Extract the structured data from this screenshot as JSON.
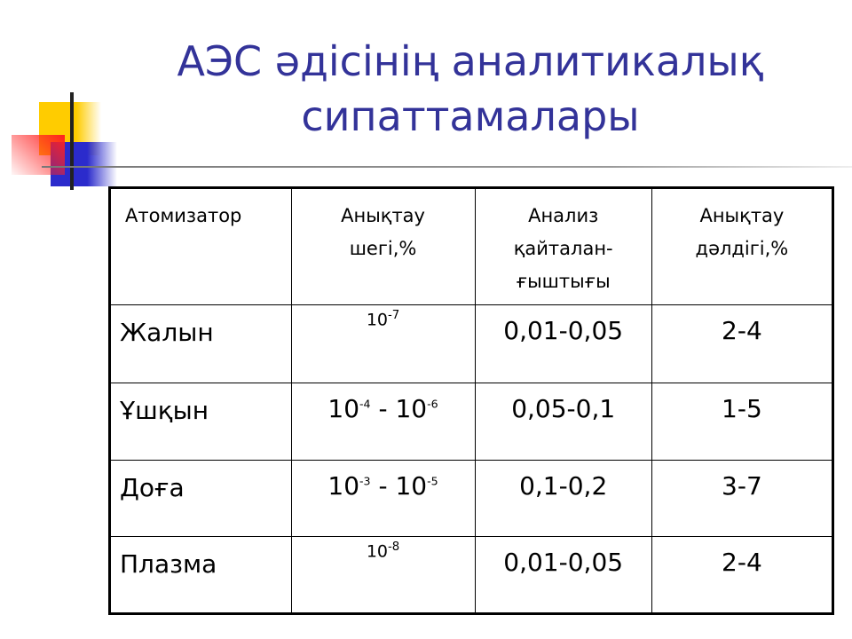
{
  "title": {
    "line1": "АЭС әдісінің аналитикалық",
    "line2": "сипаттамалары",
    "color": "#333399"
  },
  "table": {
    "headers": [
      "Атомизатор",
      "Анықтау шегі,%",
      "Анализ қайталан-ғыштығы",
      "Анықтау дәлдігі,%"
    ],
    "header_lines": [
      [
        "Атомизатор"
      ],
      [
        "Анықтау",
        "шегі,%"
      ],
      [
        "Анализ",
        "қайталан-",
        "ғыштығы"
      ],
      [
        "Анықтау",
        "дәлдігі,%"
      ]
    ],
    "rows": [
      {
        "atomizer": "Жалын",
        "limit": {
          "b1": "10",
          "e1": "-7",
          "sep": "",
          "b2": "",
          "e2": ""
        },
        "reproducibility": "0,01-0,05",
        "accuracy": "2-4"
      },
      {
        "atomizer": "Ұшқын",
        "limit": {
          "b1": "10",
          "e1": "-4",
          "sep": " - ",
          "b2": "10",
          "e2": "-6"
        },
        "reproducibility": "0,05-0,1",
        "accuracy": "1-5"
      },
      {
        "atomizer": "Доға",
        "limit": {
          "b1": "10",
          "e1": "-3",
          "sep": " - ",
          "b2": "10",
          "e2": "-5"
        },
        "reproducibility": "0,1-0,2",
        "accuracy": "3-7"
      },
      {
        "atomizer": "Плазма",
        "limit": {
          "b1": "10",
          "e1": "-8",
          "sep": "",
          "b2": "",
          "e2": ""
        },
        "reproducibility": "0,01-0,05",
        "accuracy": "2-4"
      }
    ]
  }
}
